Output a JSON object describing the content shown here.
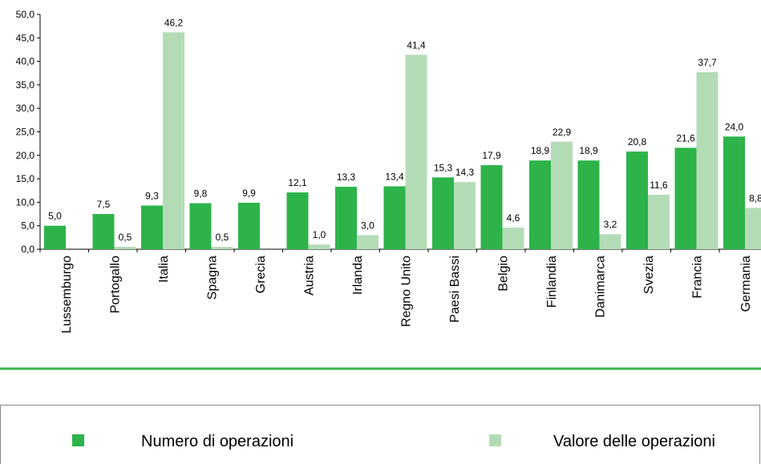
{
  "chart_data": {
    "type": "bar",
    "categories": [
      "Lussemburgo",
      "Portogallo",
      "Italia",
      "Spagna",
      "Grecia",
      "Austria",
      "Irlanda",
      "Regno Unito",
      "Paesi Bassi",
      "Belgio",
      "Finlandia",
      "Danimarca",
      "Svezia",
      "Francia",
      "Germania"
    ],
    "series": [
      {
        "name": "Numero di operazioni",
        "color": "#2db34a",
        "values": [
          5.0,
          7.5,
          9.3,
          9.8,
          9.9,
          12.1,
          13.3,
          13.4,
          15.3,
          17.9,
          18.9,
          18.9,
          20.8,
          21.6,
          24.0
        ],
        "value_labels": [
          "5,0",
          "7,5",
          "9,3",
          "9,8",
          "9,9",
          "12,1",
          "13,3",
          "13,4",
          "15,3",
          "17,9",
          "18,9",
          "18,9",
          "20,8",
          "21,6",
          "24,0"
        ]
      },
      {
        "name": "Valore delle operazioni",
        "color": "#b3dcb6",
        "values": [
          null,
          0.5,
          46.2,
          0.5,
          null,
          1.0,
          3.0,
          41.4,
          14.3,
          4.6,
          22.9,
          3.2,
          11.6,
          37.7,
          8.8
        ],
        "value_labels": [
          null,
          "0,5",
          "46,2",
          "0,5",
          null,
          "1,0",
          "3,0",
          "41,4",
          "14,3",
          "4,6",
          "22,9",
          "3,2",
          "11,6",
          "37,7",
          "8,8"
        ]
      }
    ],
    "ylim": [
      0,
      50
    ],
    "yticks": [
      {
        "value": 0,
        "label": "0,0"
      },
      {
        "value": 5,
        "label": "5,0"
      },
      {
        "value": 10,
        "label": "10,0"
      },
      {
        "value": 15,
        "label": "15,0"
      },
      {
        "value": 20,
        "label": "20,0"
      },
      {
        "value": 25,
        "label": "25,0"
      },
      {
        "value": 30,
        "label": "30,0"
      },
      {
        "value": 35,
        "label": "35,0"
      },
      {
        "value": 40,
        "label": "40,0"
      },
      {
        "value": 45,
        "label": "45,0"
      },
      {
        "value": 50,
        "label": "50,0"
      }
    ]
  }
}
